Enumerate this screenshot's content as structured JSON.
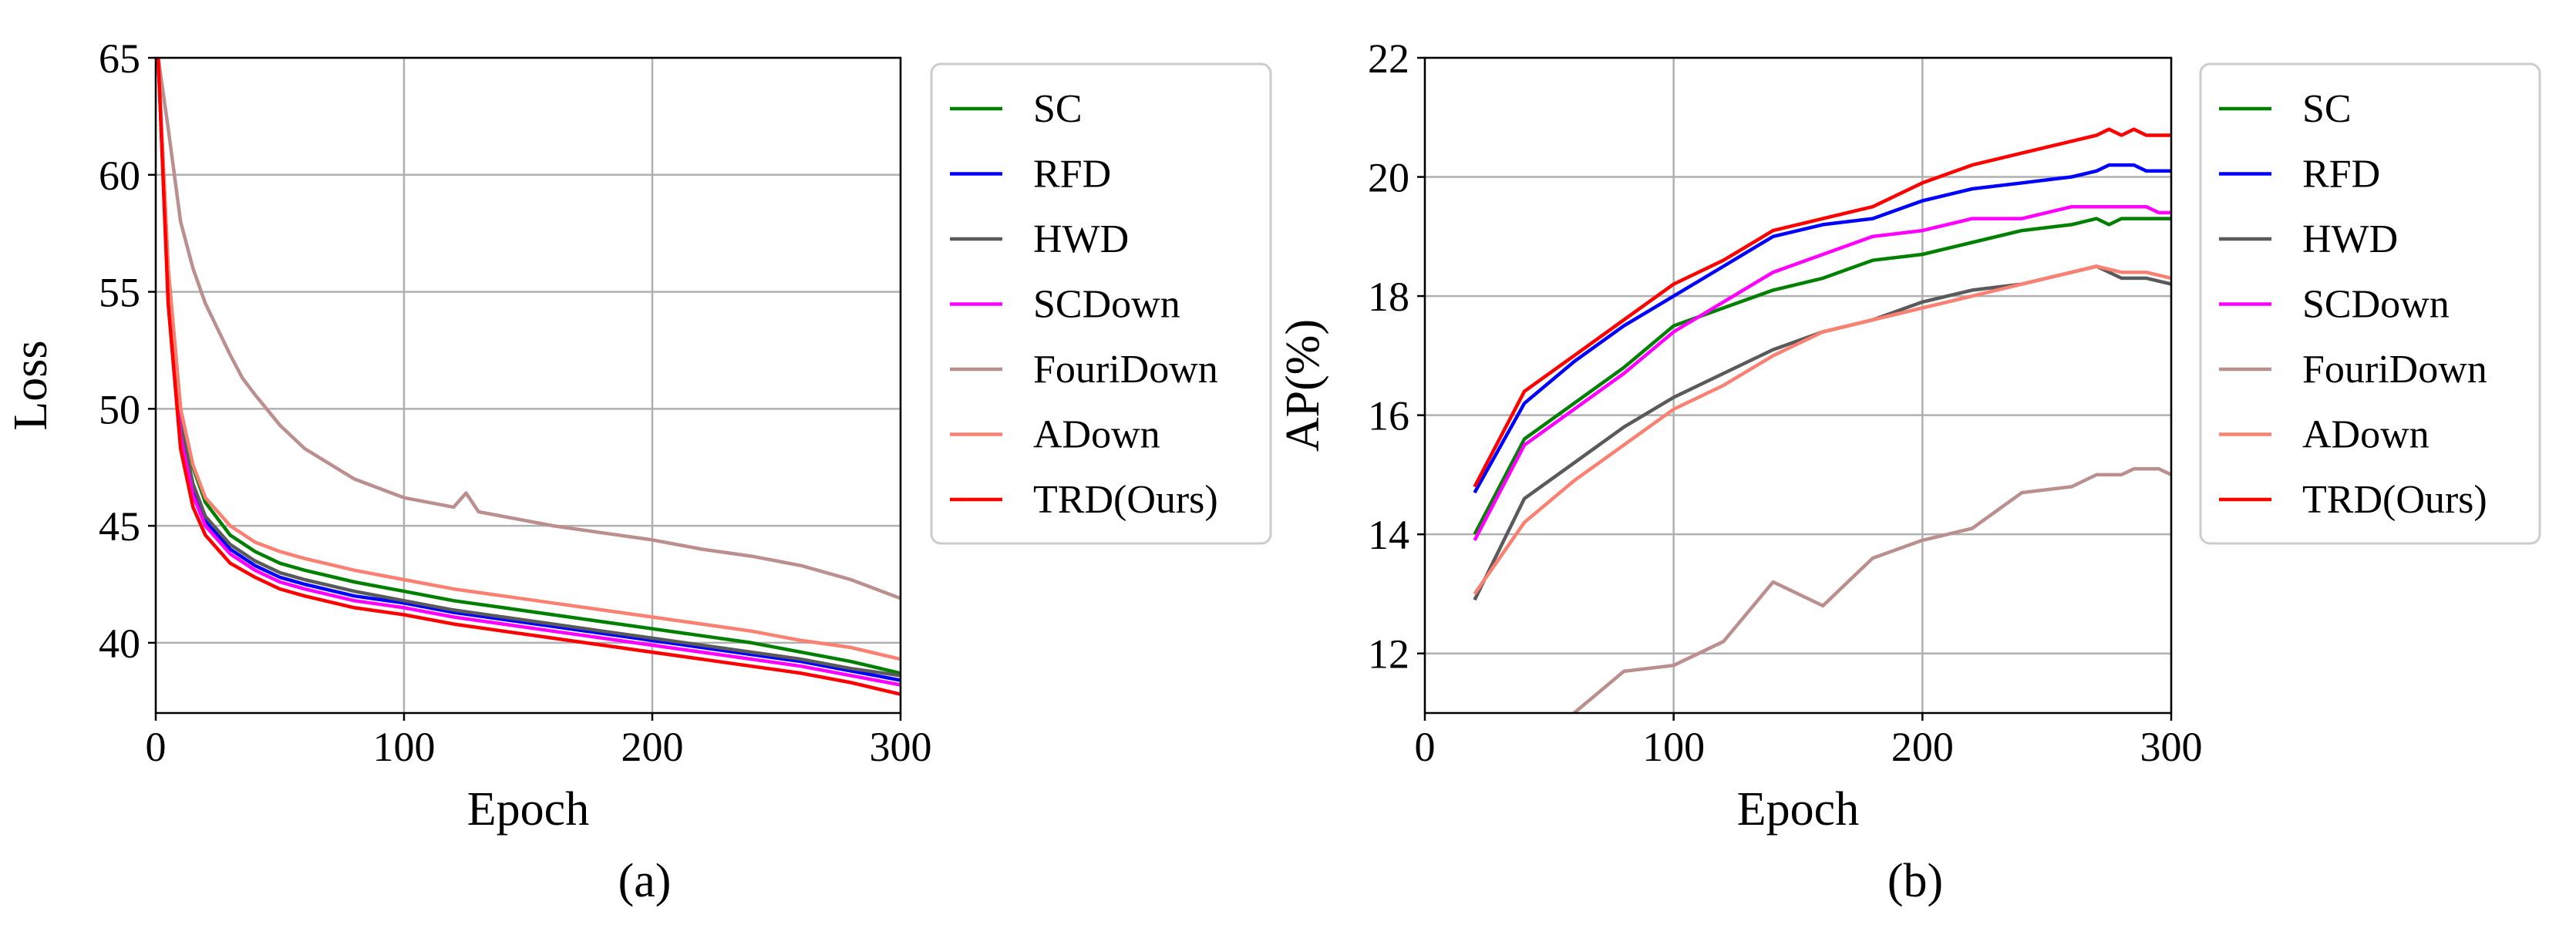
{
  "chart_data": [
    {
      "type": "line",
      "caption": "(a)",
      "xlabel": "Epoch",
      "ylabel": "Loss",
      "xlim": [
        0,
        300
      ],
      "ylim": [
        37,
        65
      ],
      "xticks": [
        0,
        100,
        200,
        300
      ],
      "yticks": [
        40,
        45,
        50,
        55,
        60,
        65
      ],
      "grid": true,
      "legend_position": "outside-right",
      "series": [
        {
          "name": "SC",
          "color": "#008000",
          "x": [
            1,
            5,
            10,
            15,
            20,
            30,
            40,
            50,
            60,
            80,
            100,
            120,
            140,
            160,
            180,
            200,
            220,
            240,
            260,
            280,
            300
          ],
          "y": [
            65,
            56,
            50,
            47.5,
            46,
            44.6,
            43.9,
            43.4,
            43.1,
            42.6,
            42.2,
            41.8,
            41.5,
            41.2,
            40.9,
            40.6,
            40.3,
            40,
            39.6,
            39.2,
            38.7
          ]
        },
        {
          "name": "RFD",
          "color": "#0000ff",
          "x": [
            1,
            5,
            10,
            15,
            20,
            30,
            40,
            50,
            60,
            80,
            100,
            120,
            140,
            160,
            180,
            200,
            220,
            240,
            260,
            280,
            300
          ],
          "y": [
            65,
            55,
            49,
            46.5,
            45.2,
            44,
            43.3,
            42.8,
            42.5,
            42,
            41.7,
            41.3,
            41,
            40.7,
            40.4,
            40.1,
            39.8,
            39.5,
            39.2,
            38.8,
            38.4
          ]
        },
        {
          "name": "HWD",
          "color": "#5a5a5a",
          "x": [
            1,
            5,
            10,
            15,
            20,
            30,
            40,
            50,
            60,
            80,
            100,
            120,
            140,
            160,
            180,
            200,
            220,
            240,
            260,
            280,
            300
          ],
          "y": [
            65,
            55.5,
            49.3,
            46.8,
            45.4,
            44.2,
            43.5,
            43,
            42.7,
            42.2,
            41.8,
            41.4,
            41.1,
            40.8,
            40.5,
            40.2,
            39.9,
            39.6,
            39.3,
            38.9,
            38.6
          ]
        },
        {
          "name": "SCDown",
          "color": "#ff00ff",
          "x": [
            1,
            5,
            10,
            15,
            20,
            30,
            40,
            50,
            60,
            80,
            100,
            120,
            140,
            160,
            180,
            200,
            220,
            240,
            260,
            280,
            300
          ],
          "y": [
            65,
            55,
            48.8,
            46.3,
            45,
            43.8,
            43.1,
            42.6,
            42.3,
            41.8,
            41.5,
            41.1,
            40.8,
            40.5,
            40.2,
            39.9,
            39.6,
            39.3,
            39,
            38.6,
            38.2
          ]
        },
        {
          "name": "FouriDown",
          "color": "#bc8f8f",
          "x": [
            1,
            5,
            10,
            15,
            20,
            30,
            35,
            40,
            50,
            60,
            80,
            100,
            120,
            125,
            130,
            140,
            160,
            180,
            200,
            220,
            240,
            260,
            280,
            300
          ],
          "y": [
            65,
            62,
            58,
            56,
            54.5,
            52.3,
            51.3,
            50.6,
            49.3,
            48.3,
            47,
            46.2,
            45.8,
            46.4,
            45.6,
            45.4,
            45,
            44.7,
            44.4,
            44,
            43.7,
            43.3,
            42.7,
            41.9
          ]
        },
        {
          "name": "ADown",
          "color": "#fa8072",
          "x": [
            1,
            5,
            10,
            15,
            20,
            30,
            40,
            50,
            60,
            80,
            100,
            120,
            140,
            160,
            180,
            200,
            220,
            240,
            260,
            280,
            300
          ],
          "y": [
            65,
            56,
            50,
            47.6,
            46.2,
            45,
            44.3,
            43.9,
            43.6,
            43.1,
            42.7,
            42.3,
            42,
            41.7,
            41.4,
            41.1,
            40.8,
            40.5,
            40.1,
            39.8,
            39.3
          ]
        },
        {
          "name": "TRD(Ours)",
          "color": "#ff0000",
          "x": [
            1,
            5,
            10,
            15,
            20,
            30,
            40,
            50,
            60,
            80,
            100,
            120,
            140,
            160,
            180,
            200,
            220,
            240,
            260,
            280,
            300
          ],
          "y": [
            65,
            54.5,
            48.3,
            45.8,
            44.6,
            43.4,
            42.8,
            42.3,
            42,
            41.5,
            41.2,
            40.8,
            40.5,
            40.2,
            39.9,
            39.6,
            39.3,
            39,
            38.7,
            38.3,
            37.8
          ]
        }
      ]
    },
    {
      "type": "line",
      "caption": "(b)",
      "xlabel": "Epoch",
      "ylabel": "AP(%)",
      "xlim": [
        0,
        300
      ],
      "ylim": [
        11,
        22
      ],
      "xticks": [
        0,
        100,
        200,
        300
      ],
      "yticks": [
        12,
        14,
        16,
        18,
        20,
        22
      ],
      "grid": true,
      "legend_position": "outside-right",
      "series": [
        {
          "name": "SC",
          "color": "#008000",
          "x": [
            20,
            40,
            60,
            80,
            100,
            120,
            140,
            160,
            180,
            200,
            220,
            240,
            260,
            270,
            275,
            280,
            290,
            300
          ],
          "y": [
            14,
            15.6,
            16.2,
            16.8,
            17.5,
            17.8,
            18.1,
            18.3,
            18.6,
            18.7,
            18.9,
            19.1,
            19.2,
            19.3,
            19.2,
            19.3,
            19.3,
            19.3
          ]
        },
        {
          "name": "RFD",
          "color": "#0000ff",
          "x": [
            20,
            40,
            60,
            80,
            100,
            120,
            140,
            160,
            180,
            200,
            220,
            240,
            260,
            270,
            275,
            285,
            290,
            300
          ],
          "y": [
            14.7,
            16.2,
            16.9,
            17.5,
            18,
            18.5,
            19,
            19.2,
            19.3,
            19.6,
            19.8,
            19.9,
            20,
            20.1,
            20.2,
            20.2,
            20.1,
            20.1
          ]
        },
        {
          "name": "HWD",
          "color": "#5a5a5a",
          "x": [
            20,
            40,
            60,
            80,
            100,
            120,
            140,
            160,
            180,
            200,
            220,
            240,
            260,
            270,
            280,
            290,
            300
          ],
          "y": [
            12.9,
            14.6,
            15.2,
            15.8,
            16.3,
            16.7,
            17.1,
            17.4,
            17.6,
            17.9,
            18.1,
            18.2,
            18.4,
            18.5,
            18.3,
            18.3,
            18.2
          ]
        },
        {
          "name": "SCDown",
          "color": "#ff00ff",
          "x": [
            20,
            40,
            60,
            80,
            100,
            120,
            140,
            160,
            180,
            200,
            220,
            240,
            260,
            270,
            280,
            290,
            295,
            300
          ],
          "y": [
            13.9,
            15.5,
            16.1,
            16.7,
            17.4,
            17.9,
            18.4,
            18.7,
            19,
            19.1,
            19.3,
            19.3,
            19.5,
            19.5,
            19.5,
            19.5,
            19.4,
            19.4
          ]
        },
        {
          "name": "FouriDown",
          "color": "#bc8f8f",
          "x": [
            60,
            80,
            100,
            120,
            140,
            160,
            180,
            200,
            220,
            240,
            260,
            270,
            280,
            285,
            290,
            295,
            300
          ],
          "y": [
            11,
            11.7,
            11.8,
            12.2,
            13.2,
            12.8,
            13.6,
            13.9,
            14.1,
            14.7,
            14.8,
            15,
            15,
            15.1,
            15.1,
            15.1,
            15
          ]
        },
        {
          "name": "ADown",
          "color": "#fa8072",
          "x": [
            20,
            40,
            60,
            80,
            100,
            120,
            140,
            160,
            180,
            200,
            220,
            240,
            260,
            270,
            280,
            290,
            300
          ],
          "y": [
            13,
            14.2,
            14.9,
            15.5,
            16.1,
            16.5,
            17,
            17.4,
            17.6,
            17.8,
            18,
            18.2,
            18.4,
            18.5,
            18.4,
            18.4,
            18.3
          ]
        },
        {
          "name": "TRD(Ours)",
          "color": "#ff0000",
          "x": [
            20,
            40,
            60,
            80,
            100,
            120,
            140,
            160,
            180,
            200,
            220,
            240,
            260,
            270,
            275,
            280,
            285,
            290,
            300
          ],
          "y": [
            14.8,
            16.4,
            17,
            17.6,
            18.2,
            18.6,
            19.1,
            19.3,
            19.5,
            19.9,
            20.2,
            20.4,
            20.6,
            20.7,
            20.8,
            20.7,
            20.8,
            20.7,
            20.7
          ]
        }
      ]
    }
  ]
}
